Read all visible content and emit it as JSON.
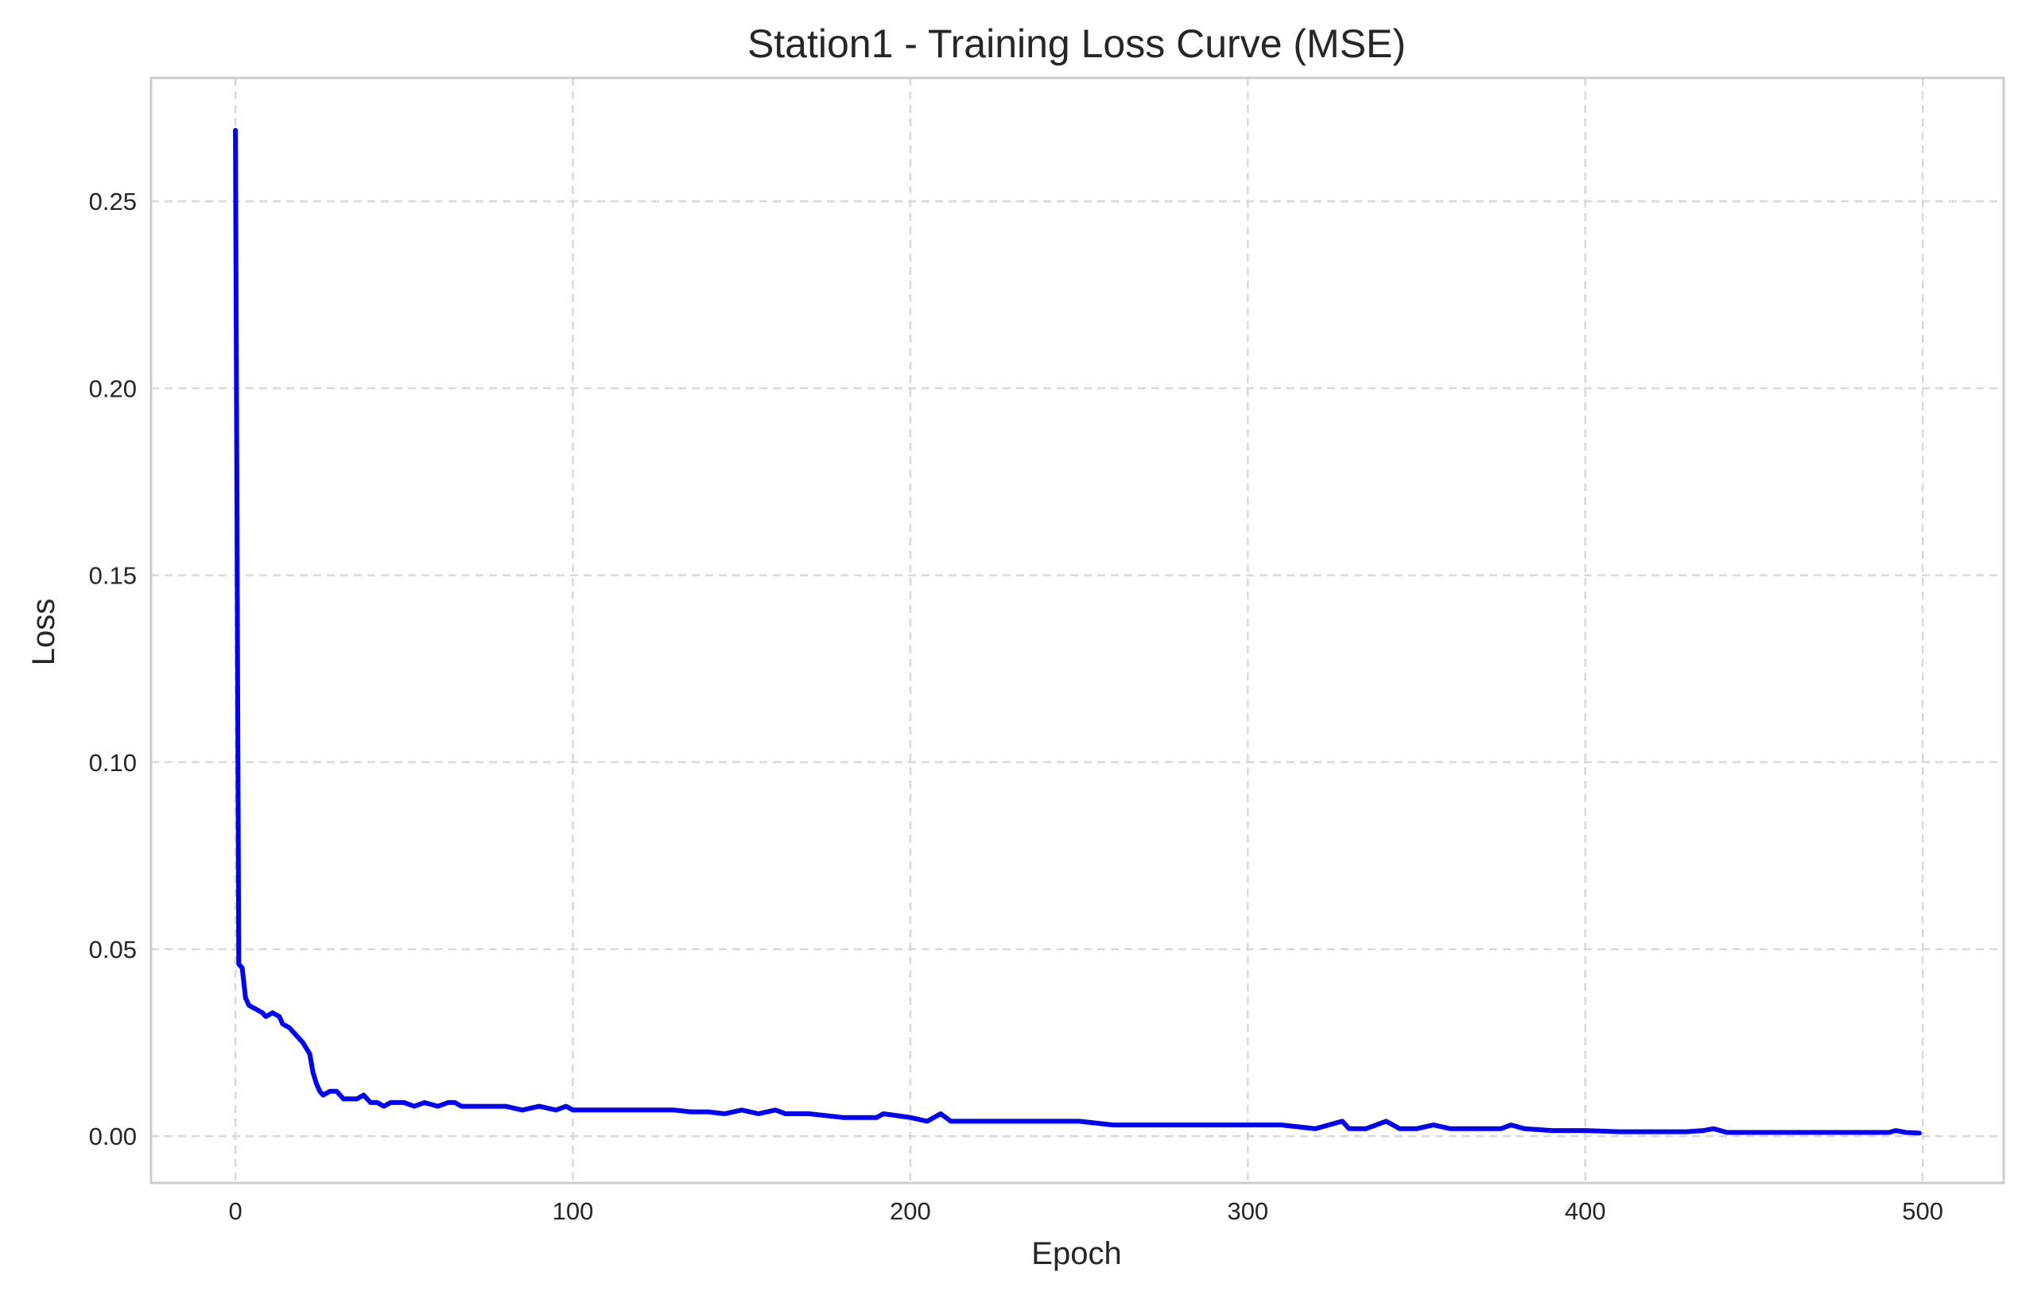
{
  "chart_data": {
    "type": "line",
    "title": "Station1 - Training Loss Curve (MSE)",
    "xlabel": "Epoch",
    "ylabel": "Loss",
    "xlim": [
      -25,
      524
    ],
    "ylim": [
      -0.0125,
      0.283
    ],
    "xticks": [
      0,
      100,
      200,
      300,
      400,
      500
    ],
    "xtick_labels": [
      "0",
      "100",
      "200",
      "300",
      "400",
      "500"
    ],
    "yticks": [
      0.0,
      0.05,
      0.1,
      0.15,
      0.2,
      0.25
    ],
    "ytick_labels": [
      "0.00",
      "0.05",
      "0.10",
      "0.15",
      "0.20",
      "0.25"
    ],
    "grid": true,
    "line_color": "#0000ff",
    "series": [
      {
        "x": [
          0,
          1,
          2,
          3,
          4,
          6,
          8,
          9,
          11,
          13,
          14,
          16,
          18,
          20,
          22,
          23,
          24,
          25,
          26,
          28,
          30,
          32,
          34,
          36,
          38,
          40,
          42,
          44,
          46,
          48,
          50,
          53,
          56,
          60,
          63,
          65,
          67,
          70,
          73,
          76,
          80,
          85,
          90,
          95,
          98,
          100,
          105,
          110,
          115,
          120,
          125,
          130,
          135,
          140,
          145,
          150,
          155,
          160,
          163,
          170,
          180,
          190,
          192,
          200,
          205,
          209,
          212,
          220,
          230,
          240,
          250,
          260,
          270,
          280,
          290,
          300,
          310,
          320,
          328,
          330,
          335,
          341,
          345,
          350,
          355,
          360,
          364,
          368,
          372,
          375,
          378,
          382,
          390,
          395,
          400,
          410,
          420,
          430,
          435,
          438,
          442,
          450,
          460,
          470,
          480,
          490,
          492,
          495,
          499
        ],
        "y": [
          0.269,
          0.046,
          0.045,
          0.037,
          0.035,
          0.034,
          0.033,
          0.032,
          0.033,
          0.032,
          0.03,
          0.029,
          0.027,
          0.025,
          0.022,
          0.017,
          0.014,
          0.012,
          0.011,
          0.012,
          0.012,
          0.01,
          0.01,
          0.01,
          0.011,
          0.009,
          0.009,
          0.008,
          0.009,
          0.009,
          0.009,
          0.008,
          0.009,
          0.008,
          0.009,
          0.009,
          0.008,
          0.008,
          0.008,
          0.008,
          0.008,
          0.007,
          0.008,
          0.007,
          0.008,
          0.007,
          0.007,
          0.007,
          0.007,
          0.007,
          0.007,
          0.007,
          0.0065,
          0.0065,
          0.006,
          0.007,
          0.006,
          0.007,
          0.006,
          0.006,
          0.005,
          0.005,
          0.006,
          0.005,
          0.004,
          0.006,
          0.004,
          0.004,
          0.004,
          0.004,
          0.004,
          0.003,
          0.003,
          0.003,
          0.003,
          0.003,
          0.003,
          0.002,
          0.004,
          0.002,
          0.002,
          0.004,
          0.002,
          0.002,
          0.003,
          0.002,
          0.002,
          0.002,
          0.002,
          0.002,
          0.003,
          0.002,
          0.0015,
          0.0015,
          0.0015,
          0.0012,
          0.0012,
          0.0012,
          0.0015,
          0.002,
          0.001,
          0.001,
          0.001,
          0.001,
          0.001,
          0.001,
          0.0015,
          0.001,
          0.0008
        ]
      }
    ]
  }
}
